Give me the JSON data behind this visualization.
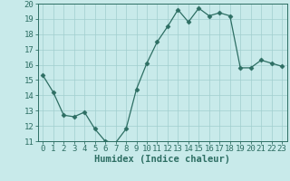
{
  "x": [
    0,
    1,
    2,
    3,
    4,
    5,
    6,
    7,
    8,
    9,
    10,
    11,
    12,
    13,
    14,
    15,
    16,
    17,
    18,
    19,
    20,
    21,
    22,
    23
  ],
  "y": [
    15.3,
    14.2,
    12.7,
    12.6,
    12.9,
    11.8,
    11.0,
    10.9,
    11.8,
    14.4,
    16.1,
    17.5,
    18.5,
    19.6,
    18.8,
    19.7,
    19.2,
    19.4,
    19.2,
    15.8,
    15.8,
    16.3,
    16.1,
    15.9
  ],
  "line_color": "#2d6e63",
  "marker": "D",
  "marker_size": 2.5,
  "bg_color": "#c8eaea",
  "grid_color": "#a0cece",
  "xlabel": "Humidex (Indice chaleur)",
  "ylim": [
    11,
    20
  ],
  "xlim": [
    -0.5,
    23.5
  ],
  "yticks": [
    11,
    12,
    13,
    14,
    15,
    16,
    17,
    18,
    19,
    20
  ],
  "xticks": [
    0,
    1,
    2,
    3,
    4,
    5,
    6,
    7,
    8,
    9,
    10,
    11,
    12,
    13,
    14,
    15,
    16,
    17,
    18,
    19,
    20,
    21,
    22,
    23
  ],
  "xlabel_fontsize": 7.5,
  "tick_fontsize": 6.5
}
